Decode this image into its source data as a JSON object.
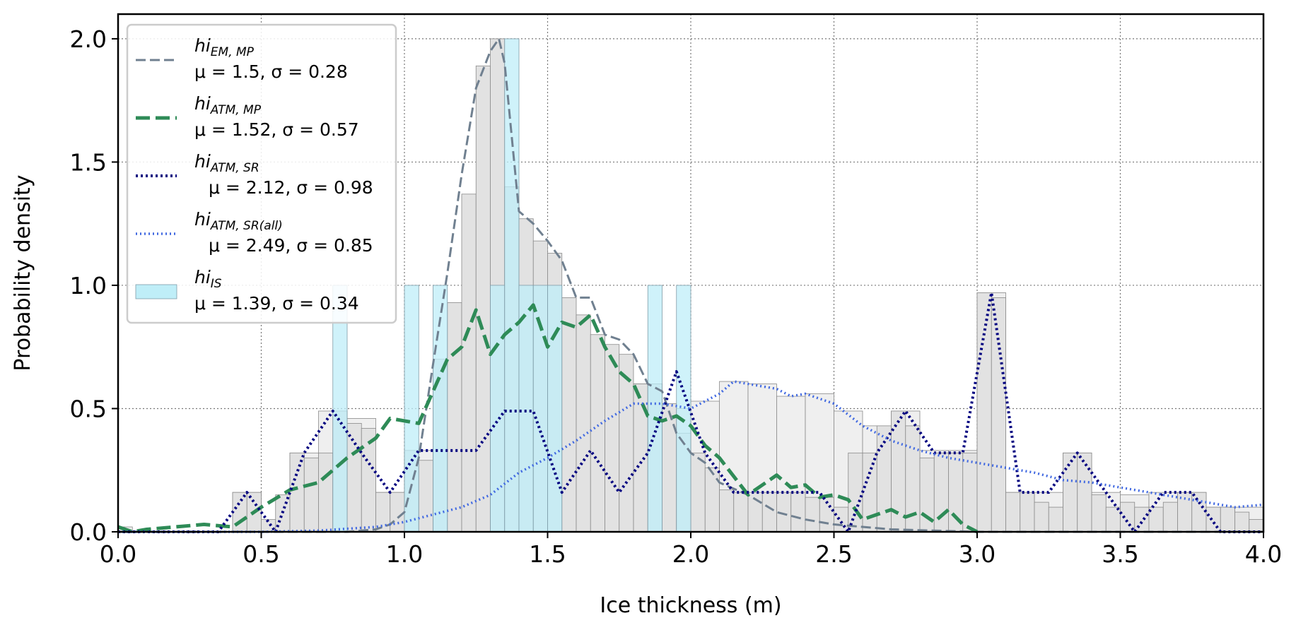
{
  "chart_data": {
    "type": "histogram-with-lines",
    "xlabel": "Ice thickness (m)",
    "ylabel": "Probability density",
    "xlim": [
      0.0,
      4.0
    ],
    "ylim": [
      0.0,
      2.1
    ],
    "x_ticks": [
      "0.0",
      "0.5",
      "1.0",
      "1.5",
      "2.0",
      "2.5",
      "3.0",
      "3.5",
      "4.0"
    ],
    "y_ticks": [
      "0.0",
      "0.5",
      "1.0",
      "1.5",
      "2.0"
    ],
    "grid": true,
    "legend_position": "upper-left",
    "colors": {
      "em_mp": "#708090",
      "atm_mp": "#2e8b57",
      "atm_sr": "#000080",
      "atm_sr_all": "#4169e1",
      "is_fill": "#bfeef8",
      "is_edge": "#7f9ca8",
      "gray_fill_light": "#efefef",
      "gray_fill_mid": "#e2e2e2",
      "gray_edge": "#8a8a8a"
    },
    "legend": [
      {
        "key": "em_mp",
        "base": "hi",
        "sub": "EM, MP",
        "stats": "μ = 1.5, σ = 0.28"
      },
      {
        "key": "atm_mp",
        "base": "hi",
        "sub": "ATM, MP",
        "stats": "μ = 1.52, σ = 0.57"
      },
      {
        "key": "atm_sr",
        "base": "hi",
        "sub": "ATM, SR",
        "stats": "μ = 2.12, σ = 0.98"
      },
      {
        "key": "atm_sr_all",
        "base": "hi",
        "sub": "ATM, SR(all)",
        "stats": "μ = 2.49, σ = 0.85"
      },
      {
        "key": "is",
        "base": "hi",
        "sub": "IS",
        "stats": "μ = 1.39, σ = 0.34"
      }
    ],
    "hist_is": {
      "bins": [
        [
          0.75,
          0.8
        ],
        [
          1.0,
          1.05
        ],
        [
          1.1,
          1.15
        ],
        [
          1.3,
          1.35
        ],
        [
          1.35,
          1.4
        ],
        [
          1.4,
          1.45
        ],
        [
          1.45,
          1.5
        ],
        [
          1.5,
          1.55
        ],
        [
          1.85,
          1.9
        ],
        [
          1.95,
          2.0
        ]
      ],
      "values": [
        1.0,
        1.0,
        1.0,
        1.0,
        2.0,
        1.0,
        1.0,
        1.0,
        1.0,
        1.0
      ]
    },
    "hist_light": {
      "bins": [
        [
          0.0,
          0.05
        ],
        [
          0.4,
          0.5
        ],
        [
          0.6,
          0.7
        ],
        [
          0.7,
          0.8
        ],
        [
          0.8,
          0.9
        ],
        [
          0.9,
          1.0
        ],
        [
          1.0,
          1.1
        ],
        [
          1.1,
          1.2
        ],
        [
          1.2,
          1.3
        ],
        [
          1.3,
          1.4
        ],
        [
          1.4,
          1.5
        ],
        [
          1.5,
          1.6
        ],
        [
          1.6,
          1.7
        ],
        [
          1.7,
          1.8
        ],
        [
          1.8,
          1.9
        ],
        [
          1.9,
          2.0
        ],
        [
          2.0,
          2.1
        ],
        [
          2.1,
          2.2
        ],
        [
          2.2,
          2.3
        ],
        [
          2.3,
          2.4
        ],
        [
          2.4,
          2.5
        ],
        [
          2.5,
          2.6
        ],
        [
          2.6,
          2.7
        ],
        [
          2.7,
          2.8
        ],
        [
          2.8,
          2.9
        ],
        [
          2.9,
          3.0
        ],
        [
          3.0,
          3.1
        ],
        [
          3.1,
          3.2
        ],
        [
          3.2,
          3.3
        ],
        [
          3.3,
          3.4
        ],
        [
          3.4,
          3.5
        ],
        [
          3.5,
          3.6
        ],
        [
          3.6,
          3.7
        ],
        [
          3.7,
          3.8
        ],
        [
          3.8,
          3.9
        ],
        [
          3.9,
          4.0
        ]
      ],
      "values": [
        0.02,
        0.16,
        0.32,
        0.49,
        0.46,
        0.16,
        0.33,
        0.33,
        0.33,
        0.49,
        0.49,
        0.16,
        0.33,
        0.16,
        0.6,
        0.5,
        0.53,
        0.61,
        0.6,
        0.55,
        0.56,
        0.49,
        0.43,
        0.49,
        0.33,
        0.33,
        0.97,
        0.16,
        0.16,
        0.32,
        0.16,
        0.15,
        0.16,
        0.16,
        0.1,
        0.1
      ]
    },
    "hist_mid": {
      "bins": [
        [
          0.4,
          0.45
        ],
        [
          0.45,
          0.5
        ],
        [
          0.5,
          0.55
        ],
        [
          0.55,
          0.6
        ],
        [
          0.6,
          0.65
        ],
        [
          0.65,
          0.7
        ],
        [
          0.7,
          0.75
        ],
        [
          0.75,
          0.8
        ],
        [
          0.8,
          0.85
        ],
        [
          0.85,
          0.9
        ],
        [
          0.9,
          0.95
        ],
        [
          0.95,
          1.0
        ],
        [
          1.0,
          1.05
        ],
        [
          1.05,
          1.1
        ],
        [
          1.1,
          1.15
        ],
        [
          1.15,
          1.2
        ],
        [
          1.2,
          1.25
        ],
        [
          1.25,
          1.3
        ],
        [
          1.3,
          1.35
        ],
        [
          1.35,
          1.4
        ],
        [
          1.4,
          1.45
        ],
        [
          1.45,
          1.5
        ],
        [
          1.5,
          1.55
        ],
        [
          1.55,
          1.6
        ],
        [
          1.6,
          1.65
        ],
        [
          1.65,
          1.7
        ],
        [
          1.7,
          1.75
        ],
        [
          1.75,
          1.8
        ],
        [
          1.8,
          1.85
        ],
        [
          1.85,
          1.9
        ],
        [
          1.9,
          1.95
        ],
        [
          1.95,
          2.0
        ],
        [
          2.0,
          2.05
        ],
        [
          2.05,
          2.1
        ],
        [
          2.1,
          2.15
        ],
        [
          2.15,
          2.2
        ],
        [
          2.2,
          2.25
        ],
        [
          2.25,
          2.3
        ],
        [
          2.3,
          2.35
        ],
        [
          2.35,
          2.4
        ],
        [
          2.4,
          2.45
        ],
        [
          2.45,
          2.5
        ],
        [
          2.5,
          2.55
        ],
        [
          2.55,
          2.6
        ],
        [
          2.6,
          2.65
        ],
        [
          2.65,
          2.7
        ],
        [
          2.7,
          2.75
        ],
        [
          2.75,
          2.8
        ],
        [
          2.8,
          2.85
        ],
        [
          2.85,
          2.9
        ],
        [
          2.9,
          2.95
        ],
        [
          2.95,
          3.0
        ],
        [
          3.0,
          3.05
        ],
        [
          3.05,
          3.1
        ],
        [
          3.1,
          3.15
        ],
        [
          3.15,
          3.2
        ],
        [
          3.2,
          3.25
        ],
        [
          3.25,
          3.3
        ],
        [
          3.3,
          3.35
        ],
        [
          3.35,
          3.4
        ],
        [
          3.4,
          3.45
        ],
        [
          3.45,
          3.5
        ],
        [
          3.5,
          3.55
        ],
        [
          3.55,
          3.6
        ],
        [
          3.6,
          3.65
        ],
        [
          3.65,
          3.7
        ],
        [
          3.7,
          3.75
        ],
        [
          3.75,
          3.8
        ],
        [
          3.8,
          3.85
        ],
        [
          3.85,
          3.9
        ],
        [
          3.9,
          3.95
        ],
        [
          3.95,
          4.0
        ]
      ],
      "values": [
        0.16,
        0.16,
        0.05,
        0.15,
        0.32,
        0.3,
        0.32,
        0.49,
        0.44,
        0.42,
        0.16,
        0.16,
        0.33,
        0.29,
        0.7,
        0.93,
        1.37,
        1.89,
        2.0,
        1.4,
        1.27,
        1.18,
        1.13,
        0.95,
        0.88,
        0.8,
        0.76,
        0.72,
        0.6,
        0.6,
        0.52,
        0.4,
        0.32,
        0.26,
        0.17,
        0.16,
        0.16,
        0.16,
        0.16,
        0.16,
        0.14,
        0.14,
        0.1,
        0.32,
        0.32,
        0.43,
        0.49,
        0.43,
        0.3,
        0.32,
        0.32,
        0.32,
        0.97,
        0.95,
        0.16,
        0.16,
        0.12,
        0.1,
        0.32,
        0.32,
        0.15,
        0.1,
        0.12,
        0.1,
        0.1,
        0.12,
        0.16,
        0.16,
        0.1,
        0.1,
        0.08,
        0.05
      ]
    },
    "series": [
      {
        "key": "em_mp",
        "style": "dashed",
        "x": [
          0.0,
          0.8,
          0.9,
          0.95,
          1.0,
          1.05,
          1.1,
          1.15,
          1.2,
          1.25,
          1.3,
          1.33,
          1.35,
          1.4,
          1.45,
          1.5,
          1.55,
          1.6,
          1.65,
          1.7,
          1.75,
          1.8,
          1.85,
          1.9,
          1.95,
          2.0,
          2.05,
          2.1,
          2.2,
          2.3,
          2.4,
          2.5,
          2.6,
          2.7,
          3.0,
          4.0
        ],
        "y": [
          0.0,
          0.0,
          0.01,
          0.03,
          0.08,
          0.3,
          0.68,
          1.05,
          1.45,
          1.8,
          1.95,
          2.0,
          1.9,
          1.3,
          1.25,
          1.18,
          1.1,
          0.95,
          0.95,
          0.8,
          0.78,
          0.72,
          0.6,
          0.57,
          0.4,
          0.32,
          0.28,
          0.2,
          0.15,
          0.08,
          0.05,
          0.03,
          0.02,
          0.01,
          0.0,
          0.0
        ]
      },
      {
        "key": "atm_mp",
        "style": "dashed-thick",
        "x": [
          0.0,
          0.05,
          0.1,
          0.2,
          0.3,
          0.4,
          0.5,
          0.6,
          0.7,
          0.8,
          0.9,
          0.95,
          1.05,
          1.15,
          1.2,
          1.25,
          1.3,
          1.35,
          1.4,
          1.45,
          1.5,
          1.55,
          1.6,
          1.65,
          1.7,
          1.75,
          1.8,
          1.85,
          1.9,
          1.95,
          2.0,
          2.05,
          2.1,
          2.2,
          2.3,
          2.35,
          2.4,
          2.45,
          2.5,
          2.55,
          2.6,
          2.7,
          2.75,
          2.8,
          2.85,
          2.9,
          2.95,
          3.0
        ],
        "y": [
          0.02,
          0.0,
          0.01,
          0.02,
          0.03,
          0.02,
          0.1,
          0.17,
          0.2,
          0.3,
          0.38,
          0.46,
          0.44,
          0.7,
          0.75,
          0.9,
          0.72,
          0.8,
          0.85,
          0.92,
          0.75,
          0.85,
          0.83,
          0.88,
          0.75,
          0.65,
          0.6,
          0.47,
          0.45,
          0.47,
          0.43,
          0.35,
          0.3,
          0.15,
          0.23,
          0.18,
          0.19,
          0.14,
          0.15,
          0.13,
          0.05,
          0.09,
          0.06,
          0.08,
          0.04,
          0.09,
          0.03,
          0.0
        ]
      },
      {
        "key": "atm_sr",
        "style": "dotted-thick",
        "x": [
          0.0,
          0.35,
          0.45,
          0.55,
          0.65,
          0.75,
          0.85,
          0.95,
          1.05,
          1.15,
          1.25,
          1.35,
          1.45,
          1.55,
          1.65,
          1.75,
          1.85,
          1.95,
          2.05,
          2.15,
          2.25,
          2.35,
          2.45,
          2.55,
          2.65,
          2.75,
          2.85,
          2.95,
          3.05,
          3.15,
          3.25,
          3.35,
          3.45,
          3.55,
          3.65,
          3.75,
          3.85,
          4.0
        ],
        "y": [
          0.0,
          0.0,
          0.16,
          0.0,
          0.32,
          0.49,
          0.32,
          0.16,
          0.33,
          0.33,
          0.33,
          0.49,
          0.49,
          0.16,
          0.33,
          0.16,
          0.32,
          0.65,
          0.32,
          0.16,
          0.16,
          0.16,
          0.16,
          0.0,
          0.32,
          0.49,
          0.32,
          0.32,
          0.97,
          0.16,
          0.16,
          0.32,
          0.16,
          0.0,
          0.16,
          0.16,
          0.0,
          0.0
        ]
      },
      {
        "key": "atm_sr_all",
        "style": "dotted",
        "x": [
          0.0,
          0.5,
          0.7,
          0.9,
          1.0,
          1.1,
          1.2,
          1.3,
          1.4,
          1.5,
          1.6,
          1.7,
          1.8,
          1.9,
          2.0,
          2.1,
          2.15,
          2.2,
          2.3,
          2.35,
          2.4,
          2.5,
          2.6,
          2.7,
          2.8,
          2.9,
          3.0,
          3.1,
          3.2,
          3.3,
          3.4,
          3.5,
          3.6,
          3.7,
          3.8,
          3.9,
          4.0
        ],
        "y": [
          0.0,
          0.0,
          0.005,
          0.02,
          0.04,
          0.07,
          0.1,
          0.15,
          0.24,
          0.3,
          0.37,
          0.45,
          0.52,
          0.52,
          0.5,
          0.56,
          0.61,
          0.6,
          0.58,
          0.55,
          0.56,
          0.52,
          0.43,
          0.37,
          0.33,
          0.3,
          0.28,
          0.26,
          0.24,
          0.21,
          0.2,
          0.18,
          0.16,
          0.14,
          0.12,
          0.1,
          0.11
        ]
      }
    ]
  }
}
